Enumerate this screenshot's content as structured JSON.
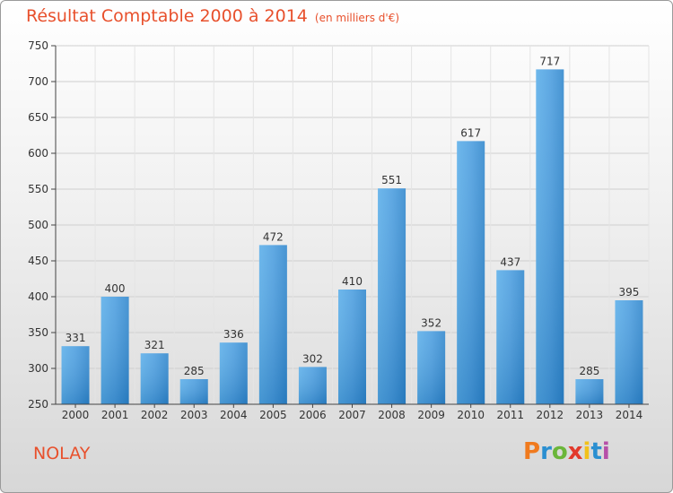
{
  "chart_data": {
    "type": "bar",
    "title": "Résultat Comptable 2000 à 2014",
    "subtitle": "(en milliers d'€)",
    "categories": [
      "2000",
      "2001",
      "2002",
      "2003",
      "2004",
      "2005",
      "2006",
      "2007",
      "2008",
      "2009",
      "2010",
      "2011",
      "2012",
      "2013",
      "2014"
    ],
    "values": [
      331,
      400,
      321,
      285,
      336,
      472,
      302,
      410,
      551,
      352,
      617,
      437,
      717,
      285,
      395
    ],
    "ylim": [
      250,
      750
    ],
    "yticks": [
      250,
      300,
      350,
      400,
      450,
      500,
      550,
      600,
      650,
      700,
      750
    ],
    "grid": true,
    "xlabel": "",
    "ylabel": ""
  },
  "footer": {
    "commune": "NOLAY",
    "logo_text": "Proxiti"
  },
  "colors": {
    "accent": "#e8502c",
    "bar_light": "#5aaee9",
    "bar_dark": "#2a7fc4",
    "grid": "#cfcfcf"
  }
}
